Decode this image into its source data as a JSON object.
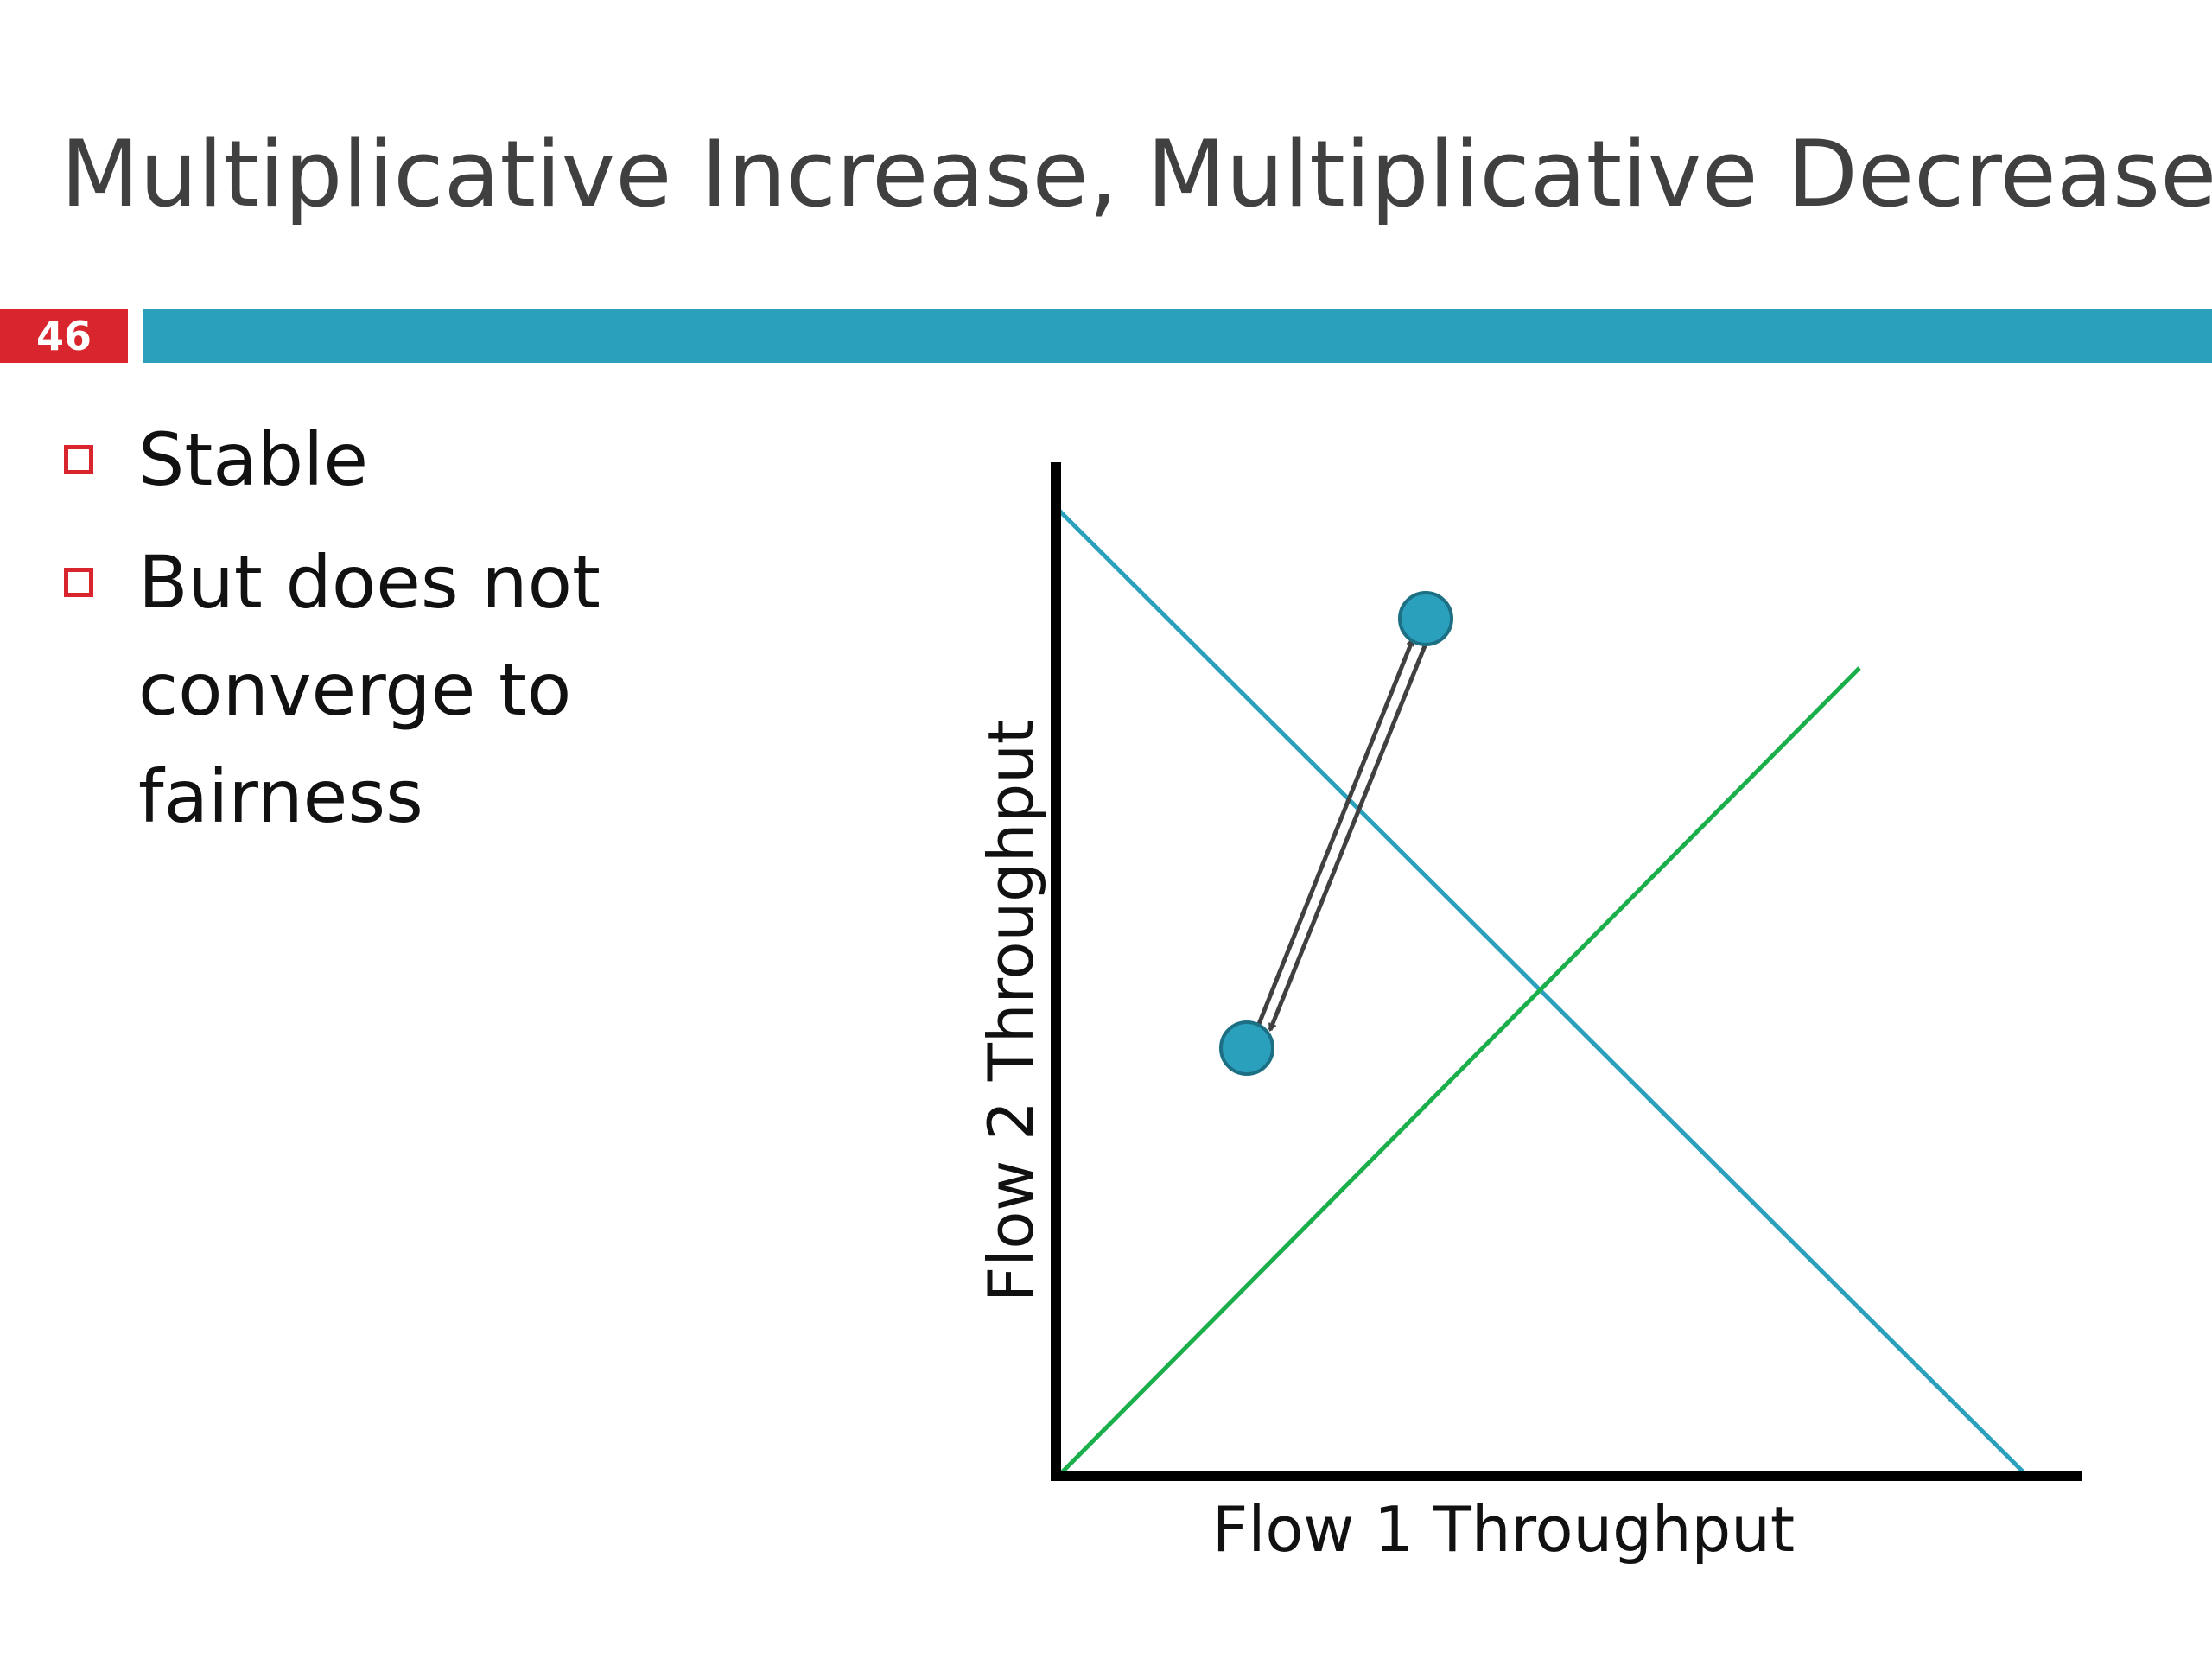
{
  "slide": {
    "title": "Multiplicative Increase, Multiplicative Decrease",
    "number": "46"
  },
  "bullets": [
    {
      "text": "Stable"
    },
    {
      "text": "But does not converge to fairness"
    }
  ],
  "diagram": {
    "x_axis_label": "Flow 1 Throughput",
    "y_axis_label": "Flow 2 Throughput",
    "colors": {
      "accent_bar": "#2aa0bd",
      "slide_number_bg": "#d9262e",
      "efficiency_line": "#2aa0bd",
      "fairness_line": "#1aaf4b",
      "points": "#2aa0bd",
      "arrows": "#404040",
      "axes": "#000000"
    }
  }
}
